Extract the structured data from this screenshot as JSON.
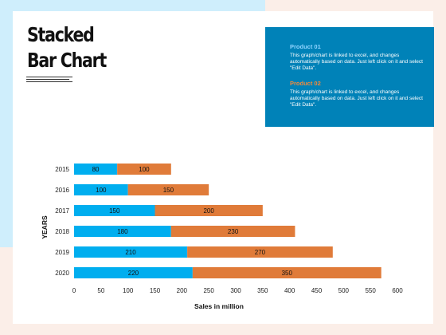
{
  "slide": {
    "title_line1": "Stacked",
    "title_line2": "Bar Chart"
  },
  "info": {
    "product1_title": "Product 01",
    "product1_text": "This graph/chart is linked to excel, and changes automatically based on data. Just left click on it and select \"Edit Data\".",
    "product2_title": "Product 02",
    "product2_text": "This graph/chart is linked to excel, and changes automatically based on data. Just left click on it and select \"Edit Data\"."
  },
  "colors": {
    "product1": "#00aeef",
    "product2": "#e07b39",
    "info_box": "#0082b8"
  },
  "chart_data": {
    "type": "bar",
    "orientation": "horizontal",
    "stacked": true,
    "categories": [
      "2015",
      "2016",
      "2017",
      "2018",
      "2019",
      "2020"
    ],
    "series": [
      {
        "values": [
          80,
          100,
          150,
          180,
          210,
          220
        ]
      },
      {
        "values": [
          100,
          150,
          200,
          230,
          270,
          350
        ]
      }
    ],
    "xlabel": "Sales in million",
    "ylabel": "YEARS",
    "xlim": [
      0,
      600
    ],
    "xticks": [
      0,
      50,
      100,
      150,
      200,
      250,
      300,
      350,
      400,
      450,
      500,
      550,
      600
    ],
    "grid": false,
    "legend": "none"
  }
}
